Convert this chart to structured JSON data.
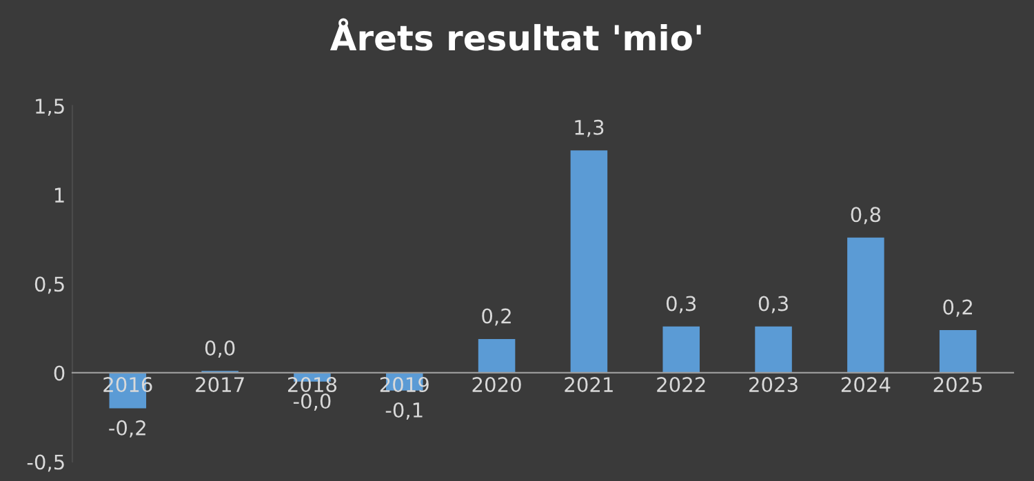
{
  "chart_data": {
    "type": "bar",
    "title": "Årets resultat 'mio'",
    "categories": [
      "2016",
      "2017",
      "2018",
      "2019",
      "2020",
      "2021",
      "2022",
      "2023",
      "2024",
      "2025"
    ],
    "values": [
      -0.2,
      0.01,
      -0.05,
      -0.1,
      0.19,
      1.25,
      0.26,
      0.26,
      0.76,
      0.24
    ],
    "value_labels": [
      "-0,2",
      "0,0",
      "-0,0",
      "-0,1",
      "0,2",
      "1,3",
      "0,3",
      "0,3",
      "0,8",
      "0,2"
    ],
    "color": "#5b9bd5",
    "ylim": [
      -0.5,
      1.5
    ],
    "yticks": [
      {
        "value": -0.5,
        "label": "-0,5"
      },
      0,
      {
        "value": 0.5,
        "label": "0,5"
      },
      1,
      {
        "value": 1.5,
        "label": "1,5"
      }
    ],
    "grid": false,
    "legend": false
  }
}
